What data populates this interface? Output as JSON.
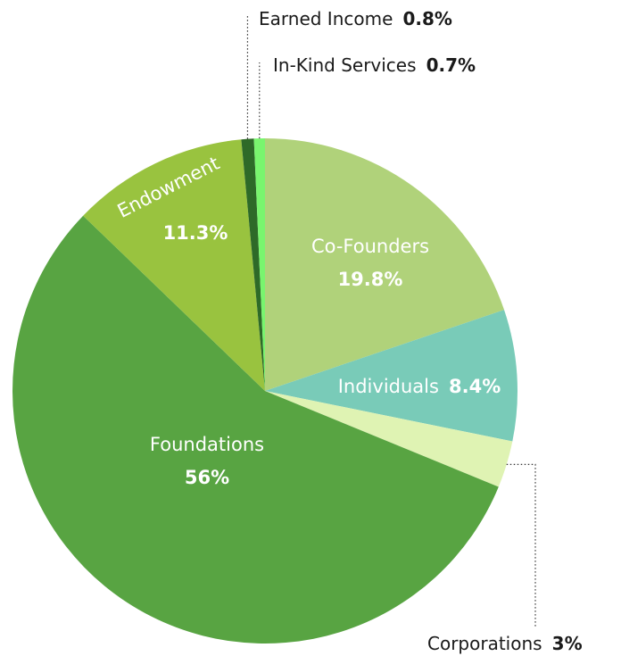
{
  "chart_data": {
    "type": "pie",
    "start_angle_deg": 0,
    "direction": "clockwise",
    "slices": [
      {
        "label": "Co-Founders",
        "value": 19.8,
        "value_label": "19.8%",
        "color": "#b0d27a"
      },
      {
        "label": "Individuals",
        "value": 8.4,
        "value_label": "8.4%",
        "color": "#79cbb8"
      },
      {
        "label": "Corporations",
        "value": 3,
        "value_label": "3%",
        "color": "#dff3b3"
      },
      {
        "label": "Foundations",
        "value": 56,
        "value_label": "56%",
        "color": "#58a442"
      },
      {
        "label": "Endowment",
        "value": 11.3,
        "value_label": "11.3%",
        "color": "#99c33f"
      },
      {
        "label": "Earned Income",
        "value": 0.8,
        "value_label": "0.8%",
        "color": "#2e6a28"
      },
      {
        "label": "In-Kind Services",
        "value": 0.7,
        "value_label": "0.7%",
        "color": "#79f56e"
      }
    ]
  }
}
